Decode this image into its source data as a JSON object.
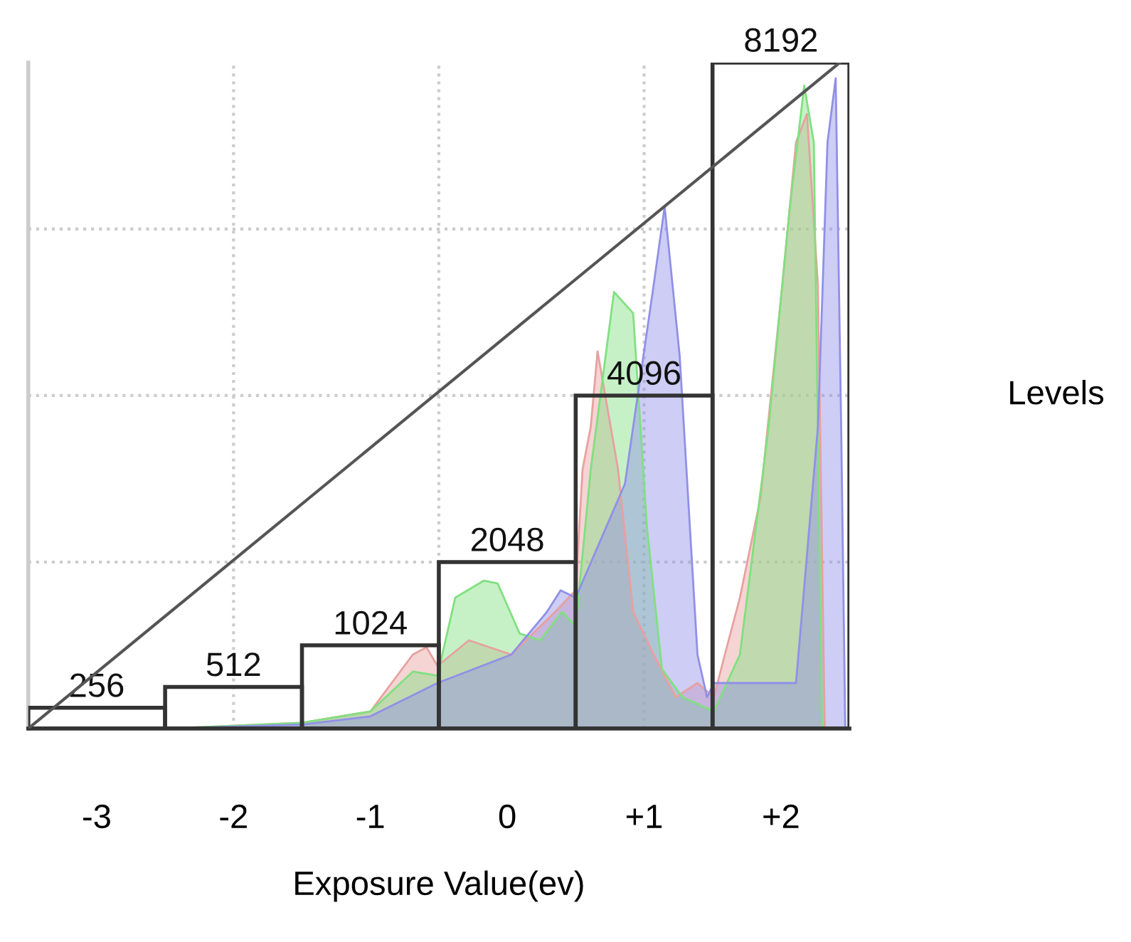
{
  "chart_data": {
    "type": "area",
    "xlabel": "Exposure Value(ev)",
    "ylabel": "Levels",
    "xlim": [
      -3.5,
      2.5
    ],
    "ylim": [
      0,
      8192
    ],
    "xticks": [
      -3,
      -2,
      -1,
      0,
      {
        "value": 1,
        "label": "+1"
      },
      {
        "value": 2,
        "label": "+2"
      }
    ],
    "yticks": [
      {
        "value": 2048,
        "label": null
      },
      {
        "value": 4096,
        "label": null
      },
      {
        "value": 6144,
        "label": null
      }
    ],
    "tick_labels": "x",
    "grid": "y",
    "legend": false,
    "ref_lines": [
      {
        "axis": "x",
        "value": -2,
        "label": null,
        "color": "#cccccc",
        "line_style": "dotted"
      },
      {
        "axis": "x",
        "value": -0.5,
        "label": null,
        "color": "#cccccc",
        "line_style": "dotted"
      },
      {
        "axis": "x",
        "value": 1,
        "label": null,
        "color": "#cccccc",
        "line_style": "dotted"
      }
    ],
    "series": [
      {
        "color": "#e8a0a0",
        "x": [
          -3.5,
          -2.5,
          -1.5,
          -1.0,
          -0.69,
          -0.59,
          -0.51,
          -0.28,
          0.03,
          0.35,
          0.5,
          0.55,
          0.61,
          0.66,
          0.81,
          0.92,
          1.07,
          1.23,
          1.39,
          1.51,
          1.59,
          1.7,
          1.85,
          2.01,
          2.11,
          2.19,
          2.27,
          2.32,
          2.5
        ],
        "values": [
          0,
          0,
          70,
          210,
          910,
          1000,
          770,
          1085,
          910,
          1435,
          1700,
          3185,
          3710,
          4640,
          3185,
          1435,
          910,
          385,
          560,
          385,
          910,
          1610,
          2835,
          5460,
          7210,
          7560,
          5460,
          0,
          0
        ]
      },
      {
        "color": "#80e080",
        "x": [
          -3.5,
          -2.5,
          -1.5,
          -1.0,
          -0.69,
          -0.51,
          -0.38,
          -0.17,
          -0.07,
          0.09,
          0.24,
          0.4,
          0.5,
          0.61,
          0.78,
          0.92,
          1.02,
          1.13,
          1.28,
          1.51,
          1.7,
          1.91,
          2.06,
          2.17,
          2.24,
          2.3,
          2.5
        ],
        "values": [
          0,
          0,
          70,
          210,
          700,
          650,
          1610,
          1820,
          1785,
          1170,
          1085,
          1435,
          1260,
          3185,
          5370,
          5110,
          2485,
          735,
          385,
          210,
          910,
          3710,
          6335,
          7910,
          7210,
          0,
          0
        ]
      },
      {
        "color": "#9090e8",
        "x": [
          -3.5,
          -2.5,
          -1.5,
          -1.0,
          -0.51,
          0.03,
          0.29,
          0.39,
          0.5,
          0.86,
          1.07,
          1.15,
          1.26,
          1.39,
          1.46,
          1.51,
          2.11,
          2.27,
          2.34,
          2.4,
          2.44,
          2.47,
          2.5
        ],
        "values": [
          0,
          0,
          50,
          150,
          560,
          910,
          1435,
          1700,
          1610,
          3010,
          5460,
          6420,
          4585,
          910,
          385,
          560,
          560,
          3710,
          7210,
          8000,
          3710,
          0,
          0
        ]
      },
      {
        "type": "bar",
        "color": "#333333",
        "x": [
          -3,
          -2,
          -1,
          0,
          1,
          2
        ],
        "values": [
          256,
          512,
          1024,
          2048,
          4096,
          8192
        ],
        "value_labels": [
          "256",
          "512",
          "1024",
          "2048",
          "4096",
          "8192"
        ]
      },
      {
        "type": "line",
        "color": "#555555",
        "x": [
          -3.5,
          2.43
        ],
        "values": [
          0,
          8192
        ]
      }
    ]
  }
}
